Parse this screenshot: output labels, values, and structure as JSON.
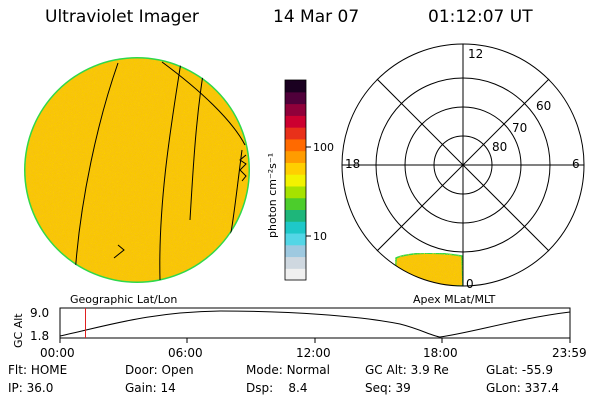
{
  "header": {
    "instrument": "Ultraviolet Imager",
    "date": "14 Mar 07",
    "time": "01:12:07 UT"
  },
  "left_panel": {
    "label": "Geographic Lat/Lon"
  },
  "right_panel": {
    "label": "Apex MLat/MLT",
    "mlt_labels": [
      "12",
      "18",
      "6",
      "0"
    ],
    "lat_labels": [
      "60",
      "70",
      "80"
    ]
  },
  "colorbar": {
    "unit_label": "photon cm⁻²s⁻¹",
    "ticks": [
      "100",
      "10"
    ],
    "colors": [
      "#f0f0f0",
      "#cfd8e0",
      "#9ec9e0",
      "#53d6e6",
      "#1ec8c8",
      "#1eb67a",
      "#4ccd2c",
      "#a6e200",
      "#f2f200",
      "#ffcf00",
      "#ff9c00",
      "#ff6a00",
      "#e8301a",
      "#cc0030",
      "#90003a",
      "#50003a",
      "#1a0020"
    ]
  },
  "altitude_plot": {
    "ylabel": "GC Alt",
    "ytick_top": "9.0",
    "ytick_bottom": "1.8",
    "xticks": [
      "00:00",
      "06:00",
      "12:00",
      "18:00",
      "23:59"
    ],
    "current_time_marker_hours": 1.2
  },
  "status": {
    "flt_label": "Flt:",
    "flt_value": "HOME",
    "ip_label": "IP:",
    "ip_value": "36.0",
    "door_label": "Door:",
    "door_value": "Open",
    "gain_label": "Gain:",
    "gain_value": "14",
    "mode_label": "Mode:",
    "mode_value": "Normal",
    "dsp_label": "Dsp:",
    "dsp_value": "8.4",
    "gcalt_label": "GC Alt:",
    "gcalt_value": "3.9 Re",
    "seq_label": "Seq:",
    "seq_value": "39",
    "glat_label": "GLat:",
    "glat_value": "-55.9",
    "glon_label": "GLon:",
    "glon_value": "337.4"
  }
}
